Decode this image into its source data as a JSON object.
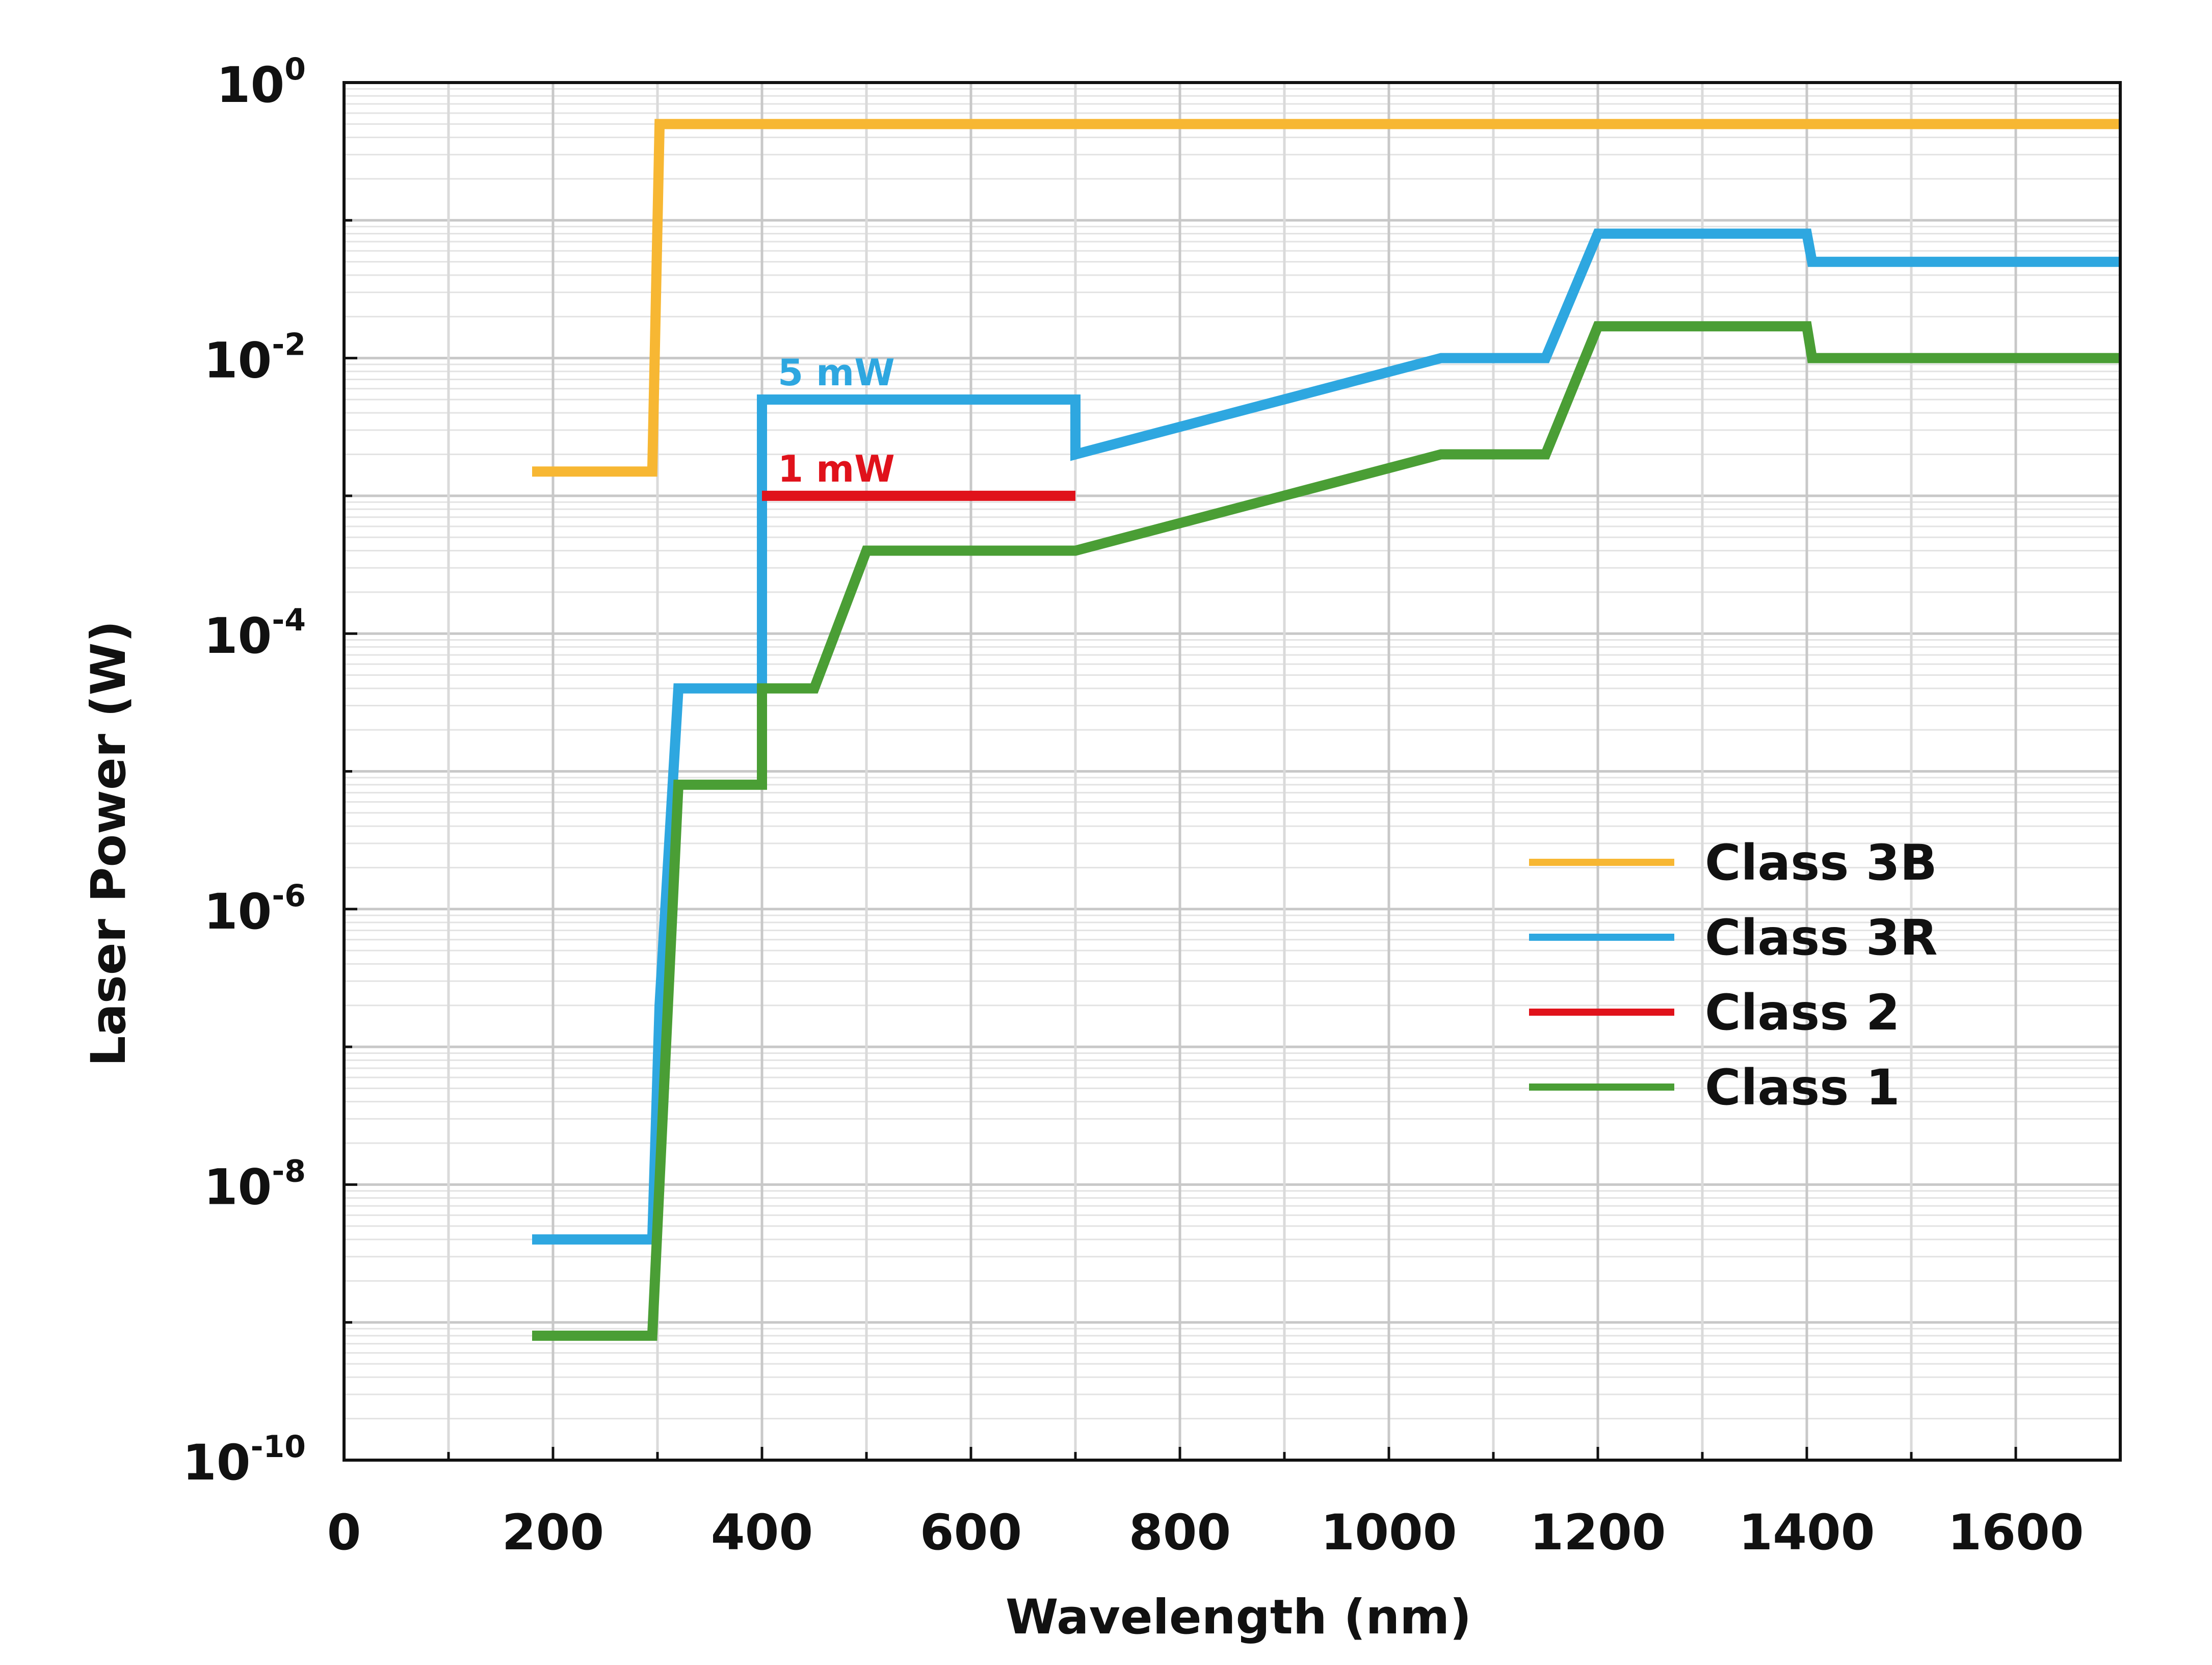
{
  "chart_data": {
    "type": "line",
    "xlabel": "Wavelength (nm)",
    "ylabel": "Laser Power (W)",
    "xlim": [
      0,
      1700
    ],
    "ylim": [
      1e-10,
      1
    ],
    "y_scale": "log",
    "grid": true,
    "legend_position": "right-middle",
    "x_ticks": [
      "0",
      "200",
      "400",
      "600",
      "800",
      "1000",
      "1200",
      "1400",
      "1600"
    ],
    "x_tick_values": [
      0,
      200,
      400,
      600,
      800,
      1000,
      1200,
      1400,
      1600
    ],
    "y_ticks": [
      {
        "base": "10",
        "exp": "0",
        "value": 1
      },
      {
        "base": "10",
        "exp": "-2",
        "value": 0.01
      },
      {
        "base": "10",
        "exp": "-4",
        "value": 0.0001
      },
      {
        "base": "10",
        "exp": "-6",
        "value": 1e-06
      },
      {
        "base": "10",
        "exp": "-8",
        "value": 1e-08
      },
      {
        "base": "10",
        "exp": "-10",
        "value": 1e-10
      }
    ],
    "series": [
      {
        "name": "Class 3B",
        "color": "#f7b733",
        "x": [
          180,
          295,
          302,
          1700
        ],
        "y": [
          0.0015,
          0.0015,
          0.5,
          0.5
        ]
      },
      {
        "name": "Class 3R",
        "color": "#2ea7e0",
        "x": [
          180,
          295,
          302,
          320,
          400,
          400,
          700,
          700,
          1050,
          1150,
          1200,
          1400,
          1405,
          1700
        ],
        "y": [
          4e-09,
          4e-09,
          2e-07,
          4e-05,
          4e-05,
          0.005,
          0.005,
          0.002,
          0.01,
          0.01,
          0.08,
          0.08,
          0.05,
          0.05
        ]
      },
      {
        "name": "Class 2",
        "color": "#e0121b",
        "x": [
          400,
          700
        ],
        "y": [
          0.001,
          0.001
        ]
      },
      {
        "name": "Class 1",
        "color": "#4a9e35",
        "x": [
          180,
          295,
          320,
          400,
          400,
          450,
          500,
          700,
          1050,
          1150,
          1200,
          1400,
          1405,
          1700
        ],
        "y": [
          8e-10,
          8e-10,
          8e-06,
          8e-06,
          4e-05,
          4e-05,
          0.0004,
          0.0004,
          0.002,
          0.002,
          0.017,
          0.017,
          0.01,
          0.01
        ]
      }
    ],
    "annotations": [
      {
        "text": "5 mW",
        "x": 420,
        "y": 0.005,
        "color": "#2ea7e0"
      },
      {
        "text": "1 mW",
        "x": 420,
        "y": 0.001,
        "color": "#e0121b"
      }
    ]
  }
}
